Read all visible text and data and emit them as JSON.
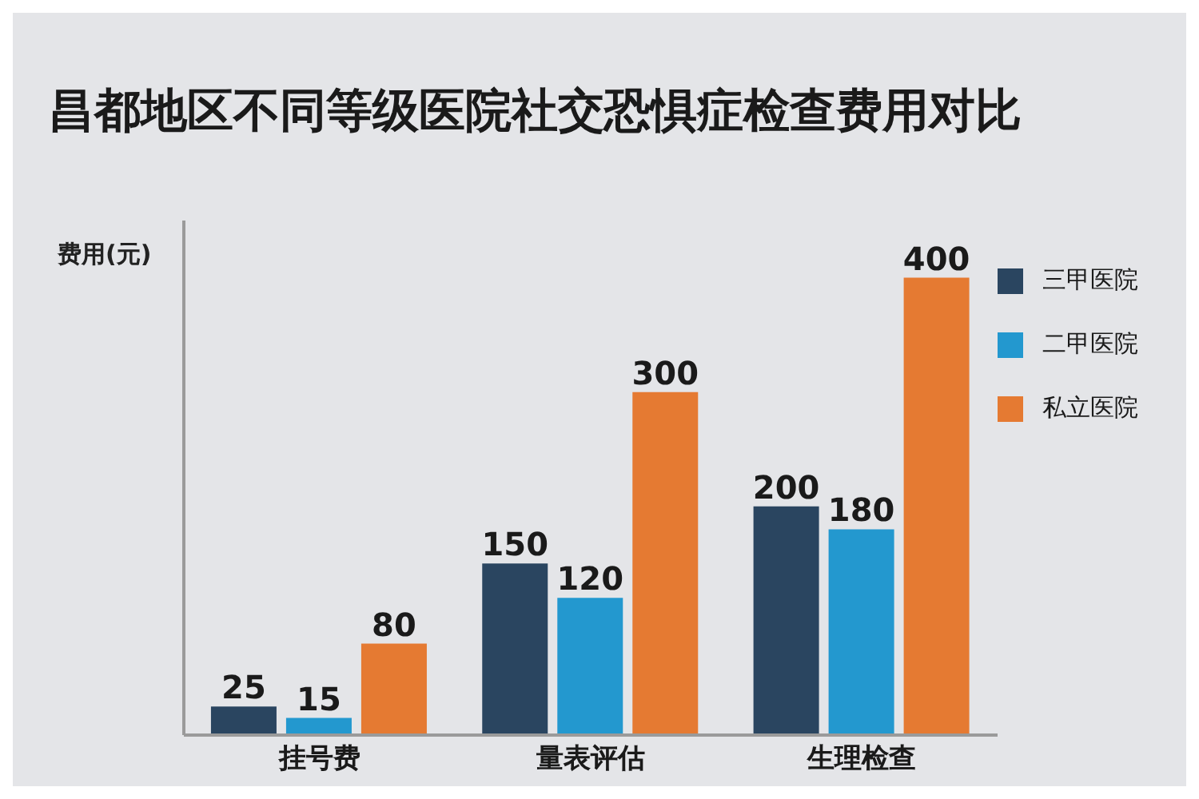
{
  "chart_data": {
    "type": "bar",
    "title": "昌都地区不同等级医院社交恐惧症检查费用对比",
    "ylabel": "费用(元)",
    "categories": [
      "挂号费",
      "量表评估",
      "生理检查"
    ],
    "series": [
      {
        "name": "三甲医院",
        "color": "#2a4560",
        "values": [
          25,
          150,
          200
        ]
      },
      {
        "name": "二甲医院",
        "color": "#2398cf",
        "values": [
          15,
          120,
          180
        ]
      },
      {
        "name": "私立医院",
        "color": "#e57a32",
        "values": [
          80,
          300,
          400
        ]
      }
    ],
    "ylim": [
      0,
      450
    ],
    "tick_labels": "x",
    "data_labels": true,
    "legend": "top right"
  }
}
